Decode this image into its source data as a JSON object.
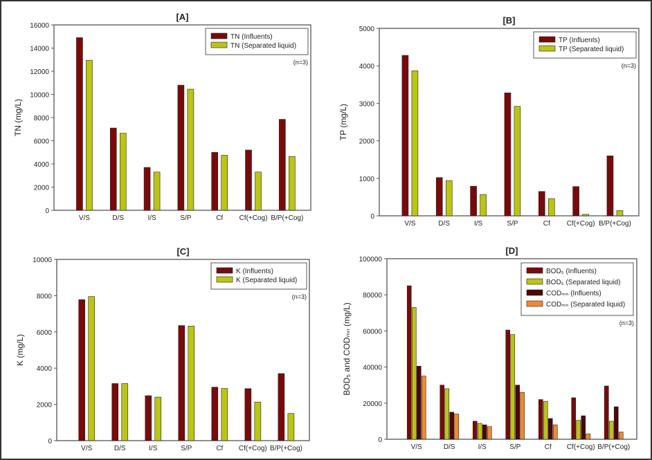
{
  "colors": {
    "influent": "#7a0a0a",
    "separated": "#bcc414",
    "cod_influent": "#4d0606",
    "cod_separated": "#ef8a33"
  },
  "chart_data": [
    {
      "type": "bar",
      "title": "[A]",
      "ylabel": "TN  (mg/L)",
      "ylim": [
        0,
        16000
      ],
      "yticks": [
        0,
        2000,
        4000,
        6000,
        8000,
        10000,
        12000,
        14000,
        16000
      ],
      "categories": [
        "V/S",
        "D/S",
        "I/S",
        "S/P",
        "Cf",
        "Cf(+Cog)",
        "B/P(+Cog)"
      ],
      "note": "(n=3)",
      "legend": "top-right",
      "series": [
        {
          "name": "TN (Influents)",
          "color": "#7a0a0a",
          "values": [
            14900,
            7100,
            3700,
            10800,
            5000,
            5200,
            7850
          ]
        },
        {
          "name": "TN (Separated liquid)",
          "color": "#bcc414",
          "values": [
            12950,
            6650,
            3300,
            10450,
            4750,
            3300,
            4650
          ]
        }
      ]
    },
    {
      "type": "bar",
      "title": "[B]",
      "ylabel": "TP  (mg/L)",
      "ylim": [
        0,
        5000
      ],
      "yticks": [
        0,
        1000,
        2000,
        3000,
        4000,
        5000
      ],
      "categories": [
        "V/S",
        "D/S",
        "I/S",
        "S/P",
        "Cf",
        "Cf(+Cog)",
        "B/P(+Cog)"
      ],
      "note": "(n=3)",
      "legend": "top-right",
      "series": [
        {
          "name": "TP (Influents)",
          "color": "#7a0a0a",
          "values": [
            4280,
            1020,
            790,
            3280,
            650,
            780,
            1600
          ]
        },
        {
          "name": "TP (Separated liquid)",
          "color": "#bcc414",
          "values": [
            3870,
            940,
            570,
            2920,
            460,
            40,
            140
          ]
        }
      ]
    },
    {
      "type": "bar",
      "title": "[C]",
      "ylabel": "K  (mg/L)",
      "ylim": [
        0,
        10000
      ],
      "yticks": [
        0,
        2000,
        4000,
        6000,
        8000,
        10000
      ],
      "categories": [
        "V/S",
        "D/S",
        "I/S",
        "S/P",
        "Cf",
        "Cf(+Cog)",
        "B/P(+Cog)"
      ],
      "note": "(n=3)",
      "legend": "top-right",
      "series": [
        {
          "name": "K (Influents)",
          "color": "#7a0a0a",
          "values": [
            7780,
            3150,
            2480,
            6350,
            2950,
            2870,
            3700
          ]
        },
        {
          "name": "K (Separated liquid)",
          "color": "#bcc414",
          "values": [
            7950,
            3150,
            2400,
            6320,
            2880,
            2130,
            1500
          ]
        }
      ]
    },
    {
      "type": "bar",
      "title": "[D]",
      "ylabel": "BOD₅ and CODₘₙ  (mg/L)",
      "ylim": [
        0,
        100000
      ],
      "yticks": [
        0,
        20000,
        40000,
        60000,
        80000,
        100000
      ],
      "categories": [
        "V/S",
        "D/S",
        "I/S",
        "S/P",
        "Cf",
        "Cf(+Cog)",
        "B/P(+Cog)"
      ],
      "note": "(n=3)",
      "legend": "top-right",
      "series": [
        {
          "name": "BOD₅ (Influents)",
          "color": "#7a0a0a",
          "values": [
            85000,
            30000,
            10000,
            60500,
            22000,
            23000,
            29500
          ]
        },
        {
          "name": "BOD₅ (Separated liquid)",
          "color": "#bcc414",
          "values": [
            73000,
            28000,
            8800,
            58000,
            21000,
            10500,
            10000
          ]
        },
        {
          "name": "CODₘₙ (Influents)",
          "color": "#4d0606",
          "values": [
            40500,
            15000,
            8000,
            30000,
            11500,
            13000,
            18000
          ]
        },
        {
          "name": "CODₘₙ (Separated liquid)",
          "color": "#ef8a33",
          "values": [
            35000,
            14000,
            7000,
            26000,
            8000,
            3000,
            4000
          ]
        }
      ]
    }
  ]
}
